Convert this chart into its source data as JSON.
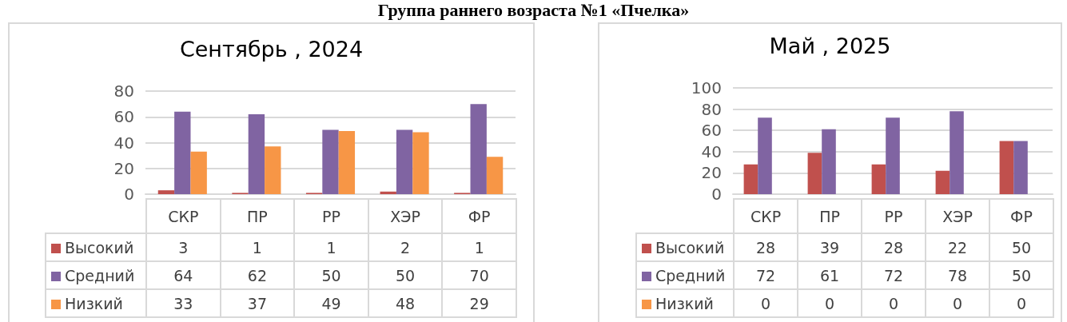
{
  "chart_data": [
    {
      "type": "bar",
      "title": "Сентябрь , 2024",
      "annotations": [
        "Группа раннего возраста №1 «Пчелка»"
      ],
      "categories": [
        "СКР",
        "ПР",
        "РР",
        "ХЭР",
        "ФР"
      ],
      "series": [
        {
          "name": "Высокий",
          "color": "#c0504d",
          "values": [
            3,
            1,
            1,
            2,
            1
          ]
        },
        {
          "name": "Средний",
          "color": "#8064a2",
          "values": [
            64,
            62,
            50,
            50,
            70
          ]
        },
        {
          "name": "Низкий",
          "color": "#f79646",
          "values": [
            33,
            37,
            49,
            48,
            29
          ]
        }
      ],
      "ylim": [
        0,
        80
      ],
      "yticks": [
        0,
        20,
        40,
        60,
        80
      ],
      "grid": "y",
      "legend": "bottom",
      "data_labels": true
    },
    {
      "type": "bar",
      "title": "Май , 2025",
      "categories": [
        "СКР",
        "ПР",
        "РР",
        "ХЭР",
        "ФР"
      ],
      "series": [
        {
          "name": "Высокий",
          "color": "#c0504d",
          "values": [
            28,
            39,
            28,
            22,
            50
          ]
        },
        {
          "name": "Средний",
          "color": "#8064a2",
          "values": [
            72,
            61,
            72,
            78,
            50
          ]
        },
        {
          "name": "Низкий",
          "color": "#f79646",
          "values": [
            0,
            0,
            0,
            0,
            0
          ]
        }
      ],
      "ylim": [
        0,
        100
      ],
      "yticks": [
        0,
        20,
        40,
        60,
        80,
        100
      ],
      "grid": "y",
      "legend": "bottom",
      "data_labels": true
    }
  ]
}
